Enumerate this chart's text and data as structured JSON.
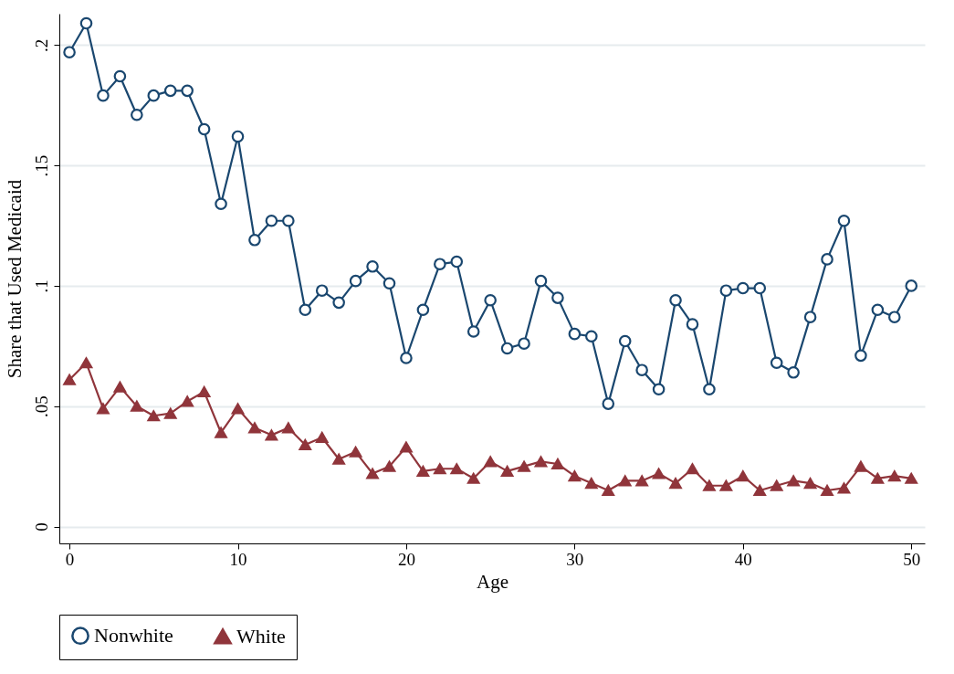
{
  "chart_data": {
    "type": "line",
    "xlabel": "Age",
    "ylabel": "Share that Used Medicaid",
    "x": [
      0,
      1,
      2,
      3,
      4,
      5,
      6,
      7,
      8,
      9,
      10,
      11,
      12,
      13,
      14,
      15,
      16,
      17,
      18,
      19,
      20,
      21,
      22,
      23,
      24,
      25,
      26,
      27,
      28,
      29,
      30,
      31,
      32,
      33,
      34,
      35,
      36,
      37,
      38,
      39,
      40,
      41,
      42,
      43,
      44,
      45,
      46,
      47,
      48,
      49,
      50
    ],
    "series": [
      {
        "name": "Nonwhite",
        "color": "#1a476f",
        "marker": "circle",
        "values": [
          0.197,
          0.209,
          0.179,
          0.187,
          0.171,
          0.179,
          0.181,
          0.181,
          0.165,
          0.134,
          0.162,
          0.119,
          0.127,
          0.127,
          0.09,
          0.098,
          0.093,
          0.102,
          0.108,
          0.101,
          0.07,
          0.09,
          0.109,
          0.11,
          0.081,
          0.094,
          0.074,
          0.076,
          0.102,
          0.095,
          0.08,
          0.079,
          0.051,
          0.077,
          0.065,
          0.057,
          0.094,
          0.084,
          0.057,
          0.098,
          0.099,
          0.099,
          0.068,
          0.064,
          0.087,
          0.111,
          0.127,
          0.071,
          0.09,
          0.087,
          0.1
        ]
      },
      {
        "name": "White",
        "color": "#90353b",
        "marker": "triangle",
        "values": [
          0.061,
          0.068,
          0.049,
          0.058,
          0.05,
          0.046,
          0.047,
          0.052,
          0.056,
          0.039,
          0.049,
          0.041,
          0.038,
          0.041,
          0.034,
          0.037,
          0.028,
          0.031,
          0.022,
          0.025,
          0.033,
          0.023,
          0.024,
          0.024,
          0.02,
          0.027,
          0.023,
          0.025,
          0.027,
          0.026,
          0.021,
          0.018,
          0.015,
          0.019,
          0.019,
          0.022,
          0.018,
          0.024,
          0.017,
          0.017,
          0.021,
          0.015,
          0.017,
          0.019,
          0.018,
          0.015,
          0.016,
          0.025,
          0.02,
          0.021,
          0.02
        ]
      }
    ],
    "xlim": [
      -0.6,
      50.8
    ],
    "xticks": [
      0,
      10,
      20,
      30,
      40,
      50
    ],
    "ylim": [
      -0.007,
      0.213
    ],
    "yticks": [
      {
        "value": 0,
        "label": "0"
      },
      {
        "value": 0.05,
        "label": ".05"
      },
      {
        "value": 0.1,
        "label": ".1"
      },
      {
        "value": 0.15,
        "label": ".15"
      },
      {
        "value": 0.2,
        "label": ".2"
      }
    ],
    "grid": "y",
    "legend": "bottom",
    "line_style": "solid"
  }
}
